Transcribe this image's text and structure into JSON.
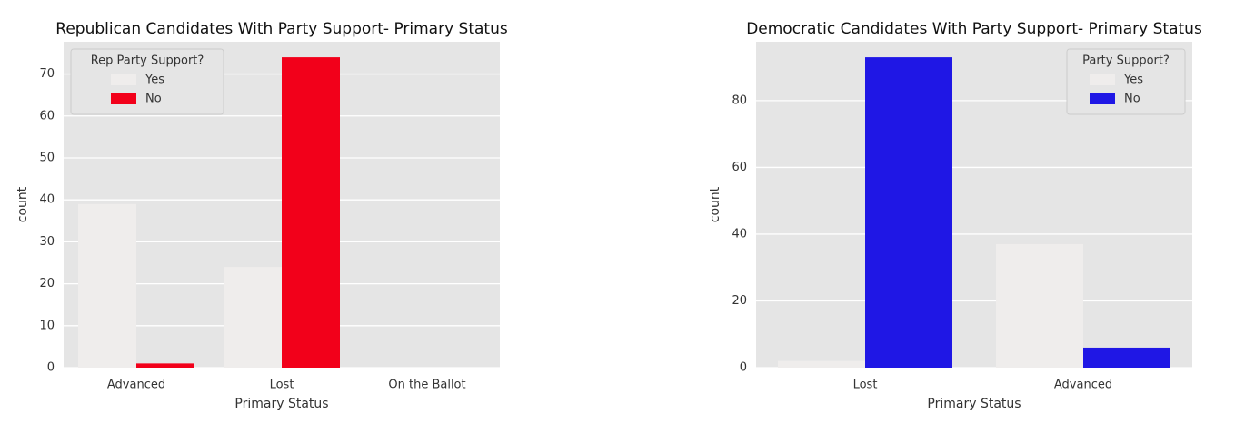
{
  "chart_data": [
    {
      "type": "bar",
      "title": "Republican Candidates With Party Support- Primary Status",
      "x_label": "Primary Status",
      "y_label": "count",
      "legend_title": "Rep Party Support?",
      "legend": "upper left",
      "categories": [
        "Advanced",
        "Lost",
        "On the Ballot"
      ],
      "series": [
        {
          "name": "Yes",
          "color": "#efedec",
          "values": [
            39,
            24,
            0
          ]
        },
        {
          "name": "No",
          "color": "#f2001a",
          "values": [
            1,
            74,
            0
          ]
        }
      ],
      "ylim": [
        0,
        77.7
      ],
      "yticks": [
        0,
        10,
        20,
        30,
        40,
        50,
        60,
        70
      ],
      "grid": true
    },
    {
      "type": "bar",
      "title": "Democratic Candidates With Party Support- Primary Status",
      "x_label": "Primary Status",
      "y_label": "count",
      "legend_title": "Party Support?",
      "legend": "upper right",
      "categories": [
        "Lost",
        "Advanced"
      ],
      "series": [
        {
          "name": "Yes",
          "color": "#efedec",
          "values": [
            2,
            37
          ]
        },
        {
          "name": "No",
          "color": "#1f17e5",
          "values": [
            93,
            6
          ]
        }
      ],
      "ylim": [
        0,
        97.65
      ],
      "yticks": [
        0,
        20,
        40,
        60,
        80
      ],
      "grid": true
    }
  ]
}
